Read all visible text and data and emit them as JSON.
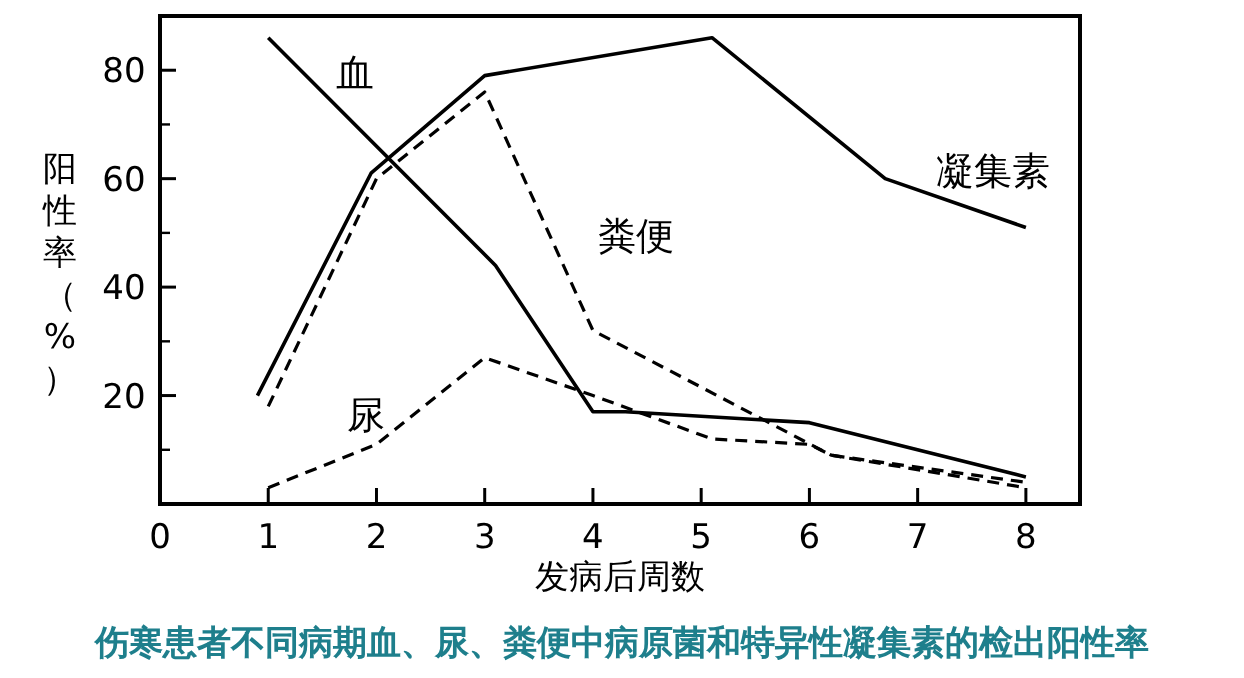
{
  "chart_data": {
    "type": "line",
    "title": "伤寒患者不同病期血、尿、粪便中病原菌和特异性凝集素的检出阳性率",
    "xlabel": "发病后周数",
    "ylabel": "阳性率（%）",
    "xlim": [
      0,
      8.5
    ],
    "ylim": [
      0,
      90
    ],
    "xticks": [
      0,
      1,
      2,
      3,
      4,
      5,
      6,
      7,
      8
    ],
    "yticks": [
      20,
      40,
      60,
      80
    ],
    "grid": false,
    "legend": false,
    "marker": "none",
    "series": [
      {
        "name": "血",
        "color": "#000000",
        "line_style": "solid",
        "x": [
          1,
          3.1,
          4,
          4.3,
          6,
          8
        ],
        "values": [
          86,
          44,
          17,
          17,
          15,
          5
        ]
      },
      {
        "name": "凝集素",
        "color": "#000000",
        "line_style": "solid",
        "x": [
          0.9,
          1.95,
          3,
          5.1,
          6.7,
          8
        ],
        "values": [
          20,
          61,
          79,
          86,
          60,
          51
        ]
      },
      {
        "name": "粪便",
        "color": "#000000",
        "line_style": "dashed",
        "x": [
          1,
          2,
          3,
          4,
          6.2,
          8
        ],
        "values": [
          18,
          60,
          76,
          32,
          9,
          3
        ]
      },
      {
        "name": "尿",
        "color": "#000000",
        "line_style": "dashed",
        "x": [
          1,
          2,
          3,
          4,
          5.1,
          6,
          6.2,
          8
        ],
        "values": [
          3,
          11,
          27,
          20,
          12,
          11,
          9,
          4
        ]
      }
    ]
  }
}
